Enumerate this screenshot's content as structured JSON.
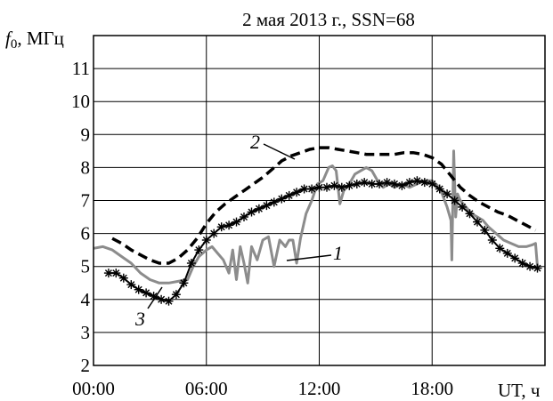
{
  "chart_data": {
    "type": "line",
    "title": "2 мая 2013 г., SSN=68",
    "ylabel_italic": "f",
    "ylabel_sub": "0",
    "ylabel_rest": ", МГц",
    "xlabel": "UT, ч",
    "xlim": [
      0,
      24
    ],
    "ylim": [
      2,
      12
    ],
    "x_ticks": [
      {
        "value": 0,
        "label": "00:00"
      },
      {
        "value": 6,
        "label": "06:00"
      },
      {
        "value": 12,
        "label": "12:00"
      },
      {
        "value": 18,
        "label": "18:00"
      }
    ],
    "y_ticks": [
      {
        "value": 2,
        "label": "2"
      },
      {
        "value": 3,
        "label": "3"
      },
      {
        "value": 4,
        "label": "4"
      },
      {
        "value": 5,
        "label": "5"
      },
      {
        "value": 6,
        "label": "6"
      },
      {
        "value": 7,
        "label": "7"
      },
      {
        "value": 8,
        "label": "8"
      },
      {
        "value": 9,
        "label": "9"
      },
      {
        "value": 10,
        "label": "10"
      },
      {
        "value": 11,
        "label": "11"
      }
    ],
    "grid": true,
    "annotations": [
      {
        "text": "1",
        "series": "observed"
      },
      {
        "text": "2",
        "series": "model-dashed"
      },
      {
        "text": "3",
        "series": "model-star"
      }
    ],
    "series": [
      {
        "id": "observed",
        "style": "solid",
        "color": "#8c8c8c",
        "x": [
          0.0,
          0.5,
          1.0,
          1.5,
          2.0,
          2.5,
          3.0,
          3.5,
          4.0,
          4.5,
          5.0,
          5.3,
          5.6,
          6.0,
          6.3,
          6.6,
          6.9,
          7.2,
          7.4,
          7.6,
          7.8,
          8.0,
          8.2,
          8.4,
          8.7,
          9.0,
          9.3,
          9.6,
          9.9,
          10.2,
          10.4,
          10.6,
          10.8,
          11.0,
          11.3,
          11.6,
          11.9,
          12.2,
          12.5,
          12.7,
          12.9,
          13.1,
          13.3,
          13.6,
          13.9,
          14.2,
          14.5,
          14.8,
          15.1,
          15.4,
          15.7,
          16.0,
          16.4,
          16.8,
          17.2,
          17.6,
          18.0,
          18.4,
          18.8,
          19.0,
          19.05,
          19.15,
          19.25,
          19.35,
          19.5,
          19.8,
          20.1,
          20.4,
          20.7,
          21.0,
          21.4,
          21.8,
          22.2,
          22.6,
          23.0,
          23.3,
          23.5,
          23.6
        ],
        "y": [
          5.55,
          5.6,
          5.5,
          5.3,
          5.1,
          4.8,
          4.6,
          4.5,
          4.5,
          4.55,
          4.6,
          5.0,
          5.3,
          5.5,
          5.6,
          5.4,
          5.2,
          4.8,
          5.5,
          4.6,
          5.6,
          5.1,
          4.5,
          5.6,
          5.2,
          5.8,
          5.9,
          5.0,
          5.8,
          5.6,
          5.8,
          5.8,
          5.1,
          5.85,
          6.6,
          7.0,
          7.5,
          7.6,
          8.0,
          8.05,
          7.9,
          6.9,
          7.3,
          7.5,
          7.8,
          7.9,
          8.0,
          7.9,
          7.6,
          7.4,
          7.5,
          7.4,
          7.5,
          7.4,
          7.5,
          7.6,
          7.6,
          7.4,
          6.8,
          6.4,
          5.2,
          8.5,
          6.5,
          7.2,
          7.0,
          6.8,
          6.6,
          6.5,
          6.4,
          6.2,
          6.0,
          5.8,
          5.7,
          5.6,
          5.6,
          5.65,
          5.7,
          5.0
        ]
      },
      {
        "id": "model-dashed",
        "style": "dashed",
        "color": "#000000",
        "x": [
          1.0,
          1.5,
          2.0,
          2.5,
          3.0,
          3.5,
          4.0,
          4.5,
          5.0,
          5.5,
          6.0,
          6.5,
          7.0,
          7.5,
          8.0,
          8.5,
          9.0,
          9.5,
          10.0,
          10.5,
          11.0,
          11.5,
          12.0,
          12.5,
          13.0,
          13.5,
          14.0,
          14.5,
          15.0,
          15.5,
          16.0,
          16.5,
          17.0,
          17.5,
          18.0,
          18.5,
          19.0,
          19.5,
          20.0,
          20.5,
          21.0,
          21.5,
          22.0,
          22.5,
          23.0,
          23.5
        ],
        "y": [
          5.85,
          5.7,
          5.5,
          5.35,
          5.2,
          5.1,
          5.1,
          5.25,
          5.5,
          5.85,
          6.3,
          6.65,
          6.9,
          7.1,
          7.3,
          7.5,
          7.7,
          7.95,
          8.2,
          8.35,
          8.45,
          8.55,
          8.6,
          8.6,
          8.55,
          8.5,
          8.45,
          8.4,
          8.4,
          8.4,
          8.4,
          8.45,
          8.45,
          8.4,
          8.3,
          8.1,
          7.75,
          7.4,
          7.15,
          6.95,
          6.8,
          6.65,
          6.55,
          6.4,
          6.25,
          6.1
        ]
      },
      {
        "id": "model-star",
        "style": "star-markers",
        "color": "#000000",
        "x": [
          0.8,
          1.2,
          1.6,
          2.0,
          2.4,
          2.8,
          3.2,
          3.6,
          4.0,
          4.4,
          4.8,
          5.2,
          5.6,
          6.0,
          6.4,
          6.8,
          7.2,
          7.6,
          8.0,
          8.4,
          8.8,
          9.2,
          9.6,
          10.0,
          10.4,
          10.8,
          11.2,
          11.6,
          12.0,
          12.4,
          12.8,
          13.2,
          13.6,
          14.0,
          14.4,
          14.8,
          15.2,
          15.6,
          16.0,
          16.4,
          16.8,
          17.2,
          17.6,
          18.0,
          18.4,
          18.8,
          19.2,
          19.6,
          20.0,
          20.4,
          20.8,
          21.2,
          21.6,
          22.0,
          22.4,
          22.8,
          23.2,
          23.6
        ],
        "y": [
          4.8,
          4.8,
          4.65,
          4.45,
          4.3,
          4.2,
          4.1,
          4.0,
          3.95,
          4.15,
          4.5,
          5.1,
          5.5,
          5.8,
          6.0,
          6.2,
          6.25,
          6.35,
          6.5,
          6.65,
          6.75,
          6.85,
          6.95,
          7.05,
          7.15,
          7.25,
          7.35,
          7.35,
          7.4,
          7.4,
          7.45,
          7.4,
          7.45,
          7.5,
          7.55,
          7.5,
          7.5,
          7.55,
          7.5,
          7.45,
          7.55,
          7.6,
          7.55,
          7.5,
          7.35,
          7.2,
          7.0,
          6.8,
          6.6,
          6.35,
          6.1,
          5.8,
          5.55,
          5.4,
          5.25,
          5.1,
          5.0,
          4.95
        ]
      }
    ]
  }
}
